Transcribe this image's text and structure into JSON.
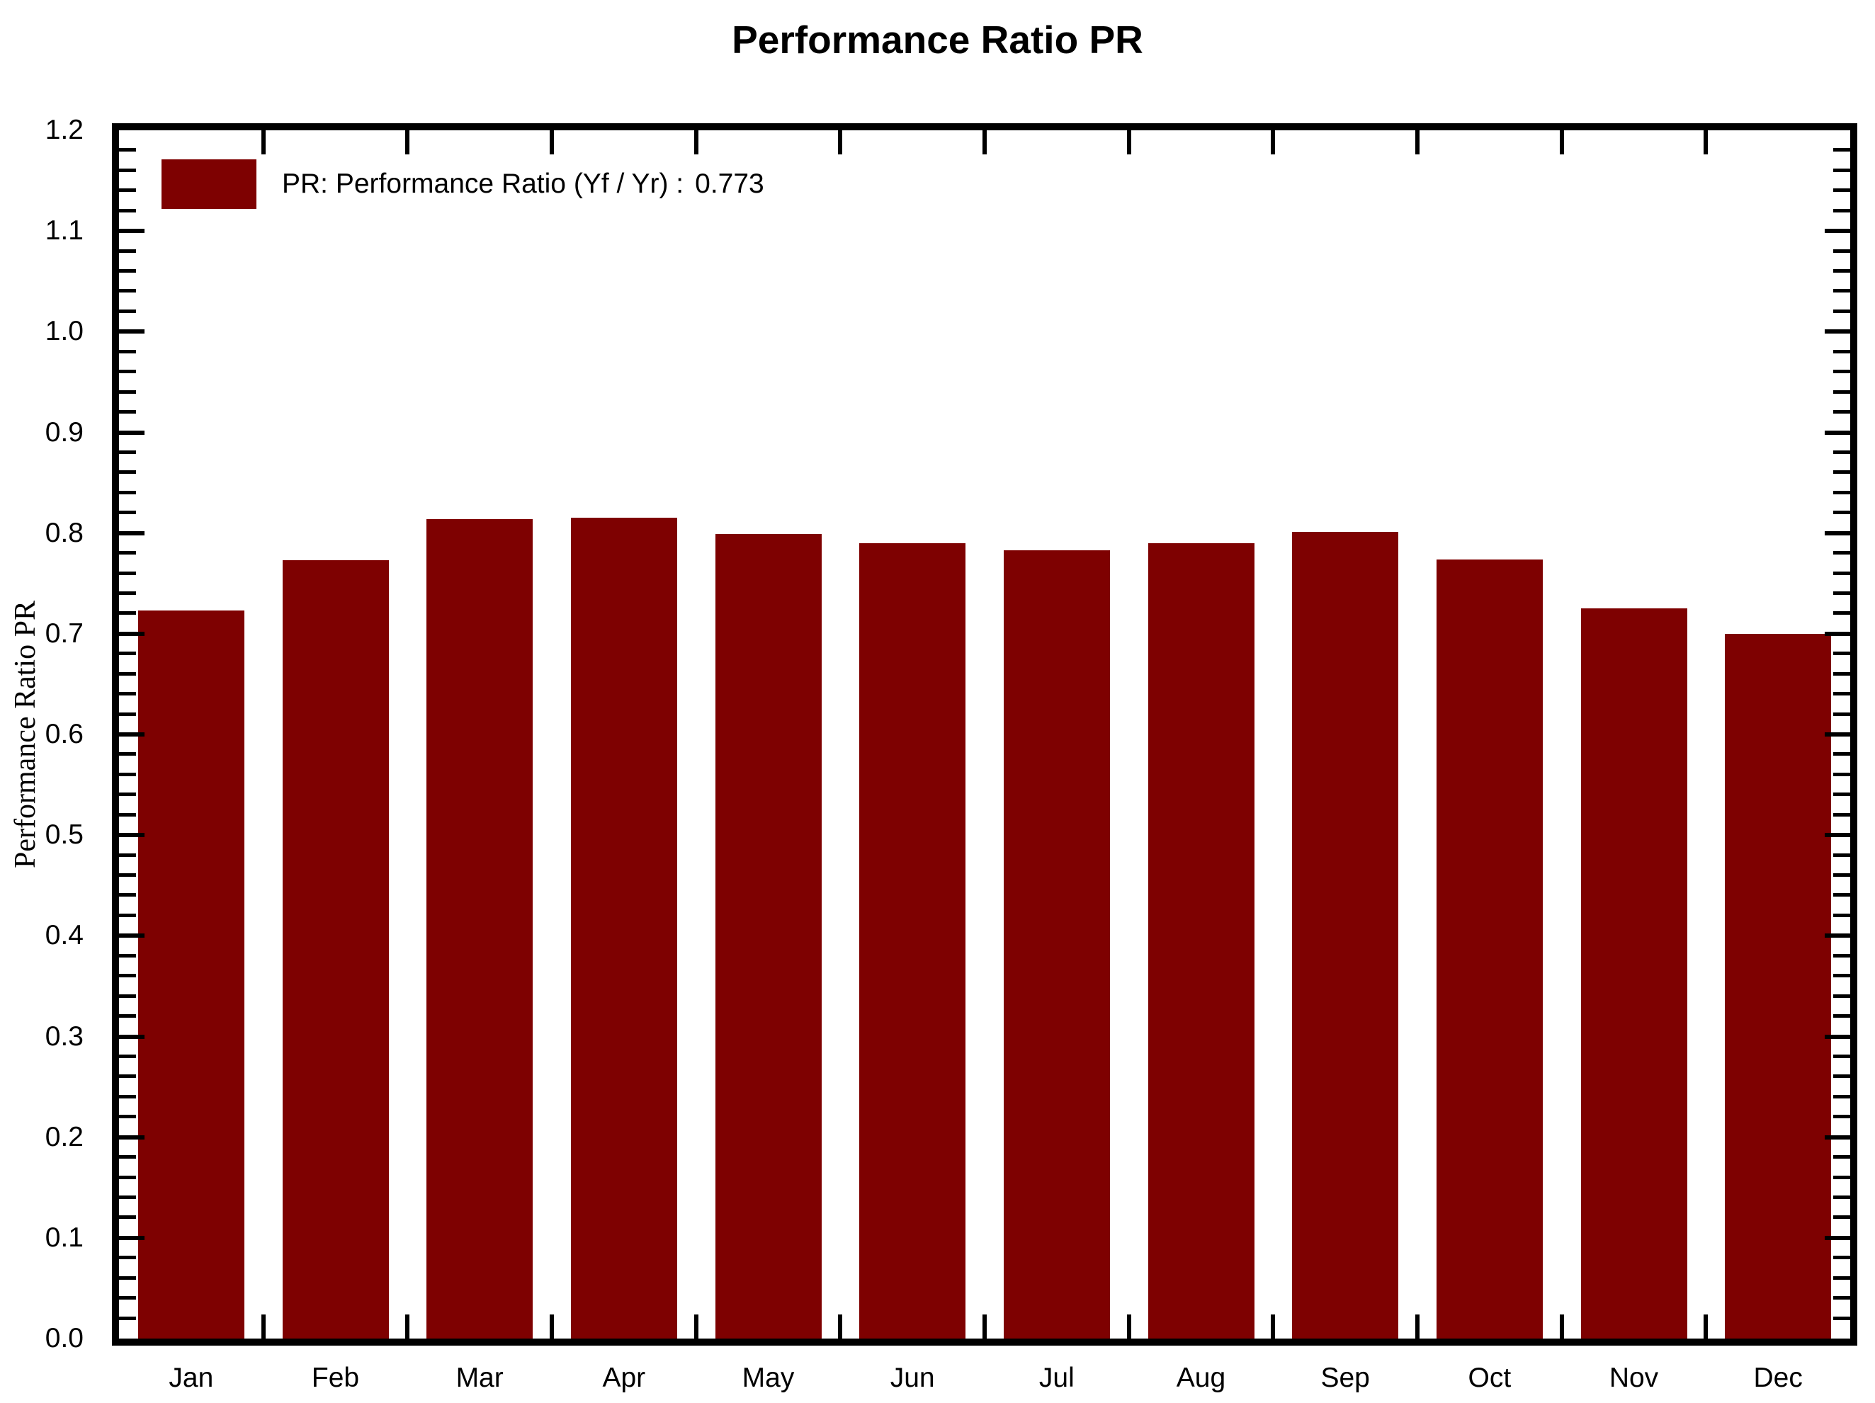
{
  "chart_data": {
    "type": "bar",
    "title": "Performance Ratio PR",
    "ylabel": "Performance Ratio PR",
    "xlabel": "",
    "categories": [
      "Jan",
      "Feb",
      "Mar",
      "Apr",
      "May",
      "Jun",
      "Jul",
      "Aug",
      "Sep",
      "Oct",
      "Nov",
      "Dec"
    ],
    "values": [
      0.723,
      0.773,
      0.814,
      0.815,
      0.799,
      0.79,
      0.783,
      0.79,
      0.801,
      0.774,
      0.725,
      0.7
    ],
    "ylim": [
      0.0,
      1.2
    ],
    "ytick_step": 0.1,
    "y_minor_tick_step": 0.02,
    "ytick_labels": [
      "0.0",
      "0.1",
      "0.2",
      "0.3",
      "0.4",
      "0.5",
      "0.6",
      "0.7",
      "0.8",
      "0.9",
      "1.0",
      "1.1",
      "1.2"
    ],
    "grid": false,
    "legend": {
      "position": "top-left-inside",
      "label": "PR: Performance Ratio (Yf / Yr) :",
      "value": "0.773",
      "swatch_color": "#7E0101"
    },
    "colors": {
      "bar": "#7E0101",
      "axis": "#000000",
      "text": "#000000",
      "background": "#FFFFFF"
    }
  }
}
